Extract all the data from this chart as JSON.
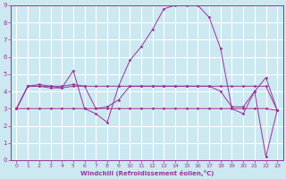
{
  "xlabel": "Windchill (Refroidissement éolien,°C)",
  "bg_color": "#cce8f0",
  "line_color": "#993399",
  "grid_color": "#ffffff",
  "xlim": [
    -0.5,
    23.5
  ],
  "ylim": [
    0,
    9
  ],
  "xticks": [
    0,
    1,
    2,
    3,
    4,
    5,
    6,
    7,
    8,
    9,
    10,
    11,
    12,
    13,
    14,
    15,
    16,
    17,
    18,
    19,
    20,
    21,
    22,
    23
  ],
  "yticks": [
    0,
    1,
    2,
    3,
    4,
    5,
    6,
    7,
    8,
    9
  ],
  "series": [
    [
      3.0,
      4.3,
      4.4,
      4.3,
      4.2,
      5.2,
      3.0,
      2.7,
      2.2,
      4.3,
      5.8,
      6.6,
      7.6,
      8.8,
      9.0,
      9.0,
      9.0,
      8.3,
      6.5,
      3.0,
      2.7,
      4.0,
      4.8,
      2.9
    ],
    [
      3.0,
      4.3,
      4.3,
      4.3,
      4.3,
      4.4,
      4.3,
      3.0,
      3.1,
      3.5,
      4.3,
      4.3,
      4.3,
      4.3,
      4.3,
      4.3,
      4.3,
      4.3,
      4.0,
      3.1,
      3.1,
      4.0,
      0.2,
      2.9
    ],
    [
      3.0,
      4.3,
      4.3,
      4.2,
      4.2,
      4.3,
      4.3,
      4.3,
      4.3,
      4.3,
      4.3,
      4.3,
      4.3,
      4.3,
      4.3,
      4.3,
      4.3,
      4.3,
      4.3,
      4.3,
      4.3,
      4.3,
      4.3,
      2.9
    ],
    [
      3.0,
      3.0,
      3.0,
      3.0,
      3.0,
      3.0,
      3.0,
      3.0,
      3.0,
      3.0,
      3.0,
      3.0,
      3.0,
      3.0,
      3.0,
      3.0,
      3.0,
      3.0,
      3.0,
      3.0,
      3.0,
      3.0,
      3.0,
      2.9
    ]
  ]
}
